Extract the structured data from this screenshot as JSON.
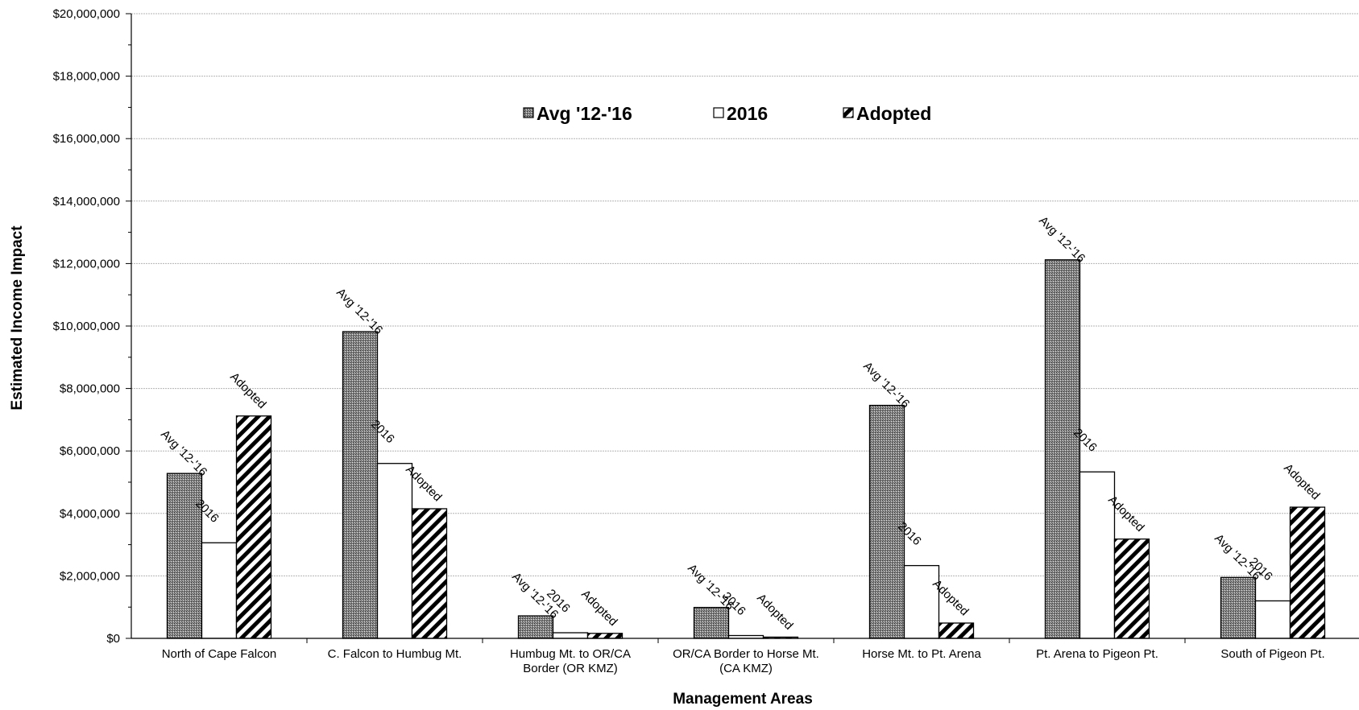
{
  "chart_data": {
    "type": "bar",
    "title": "",
    "xlabel": "Management Areas",
    "ylabel": "Estimated Income Impact",
    "ylim": [
      0,
      20000000
    ],
    "ytick_step": 2000000,
    "ytick_labels": [
      "$0",
      "$2,000,000",
      "$4,000,000",
      "$6,000,000",
      "$8,000,000",
      "$10,000,000",
      "$12,000,000",
      "$14,000,000",
      "$16,000,000",
      "$18,000,000",
      "$20,000,000"
    ],
    "grid": true,
    "legend_position": "top-center",
    "categories": [
      [
        "North of Cape Falcon"
      ],
      [
        "C. Falcon to Humbug Mt."
      ],
      [
        "Humbug Mt. to OR/CA",
        "Border (OR KMZ)"
      ],
      [
        "OR/CA Border to Horse Mt.",
        "(CA KMZ)"
      ],
      [
        "Horse Mt. to Pt. Arena"
      ],
      [
        "Pt. Arena to Pigeon Pt."
      ],
      [
        "South of Pigeon Pt."
      ]
    ],
    "series": [
      {
        "name": "Avg '12-'16",
        "pattern": "crosshatch",
        "values": [
          5280000,
          9820000,
          720000,
          990000,
          7460000,
          12120000,
          1950000
        ]
      },
      {
        "name": "2016",
        "pattern": "white",
        "values": [
          3060000,
          5600000,
          180000,
          90000,
          2330000,
          5330000,
          1200000
        ]
      },
      {
        "name": "Adopted",
        "pattern": "diagonal",
        "values": [
          7120000,
          4150000,
          160000,
          40000,
          490000,
          3180000,
          4200000
        ]
      }
    ]
  }
}
